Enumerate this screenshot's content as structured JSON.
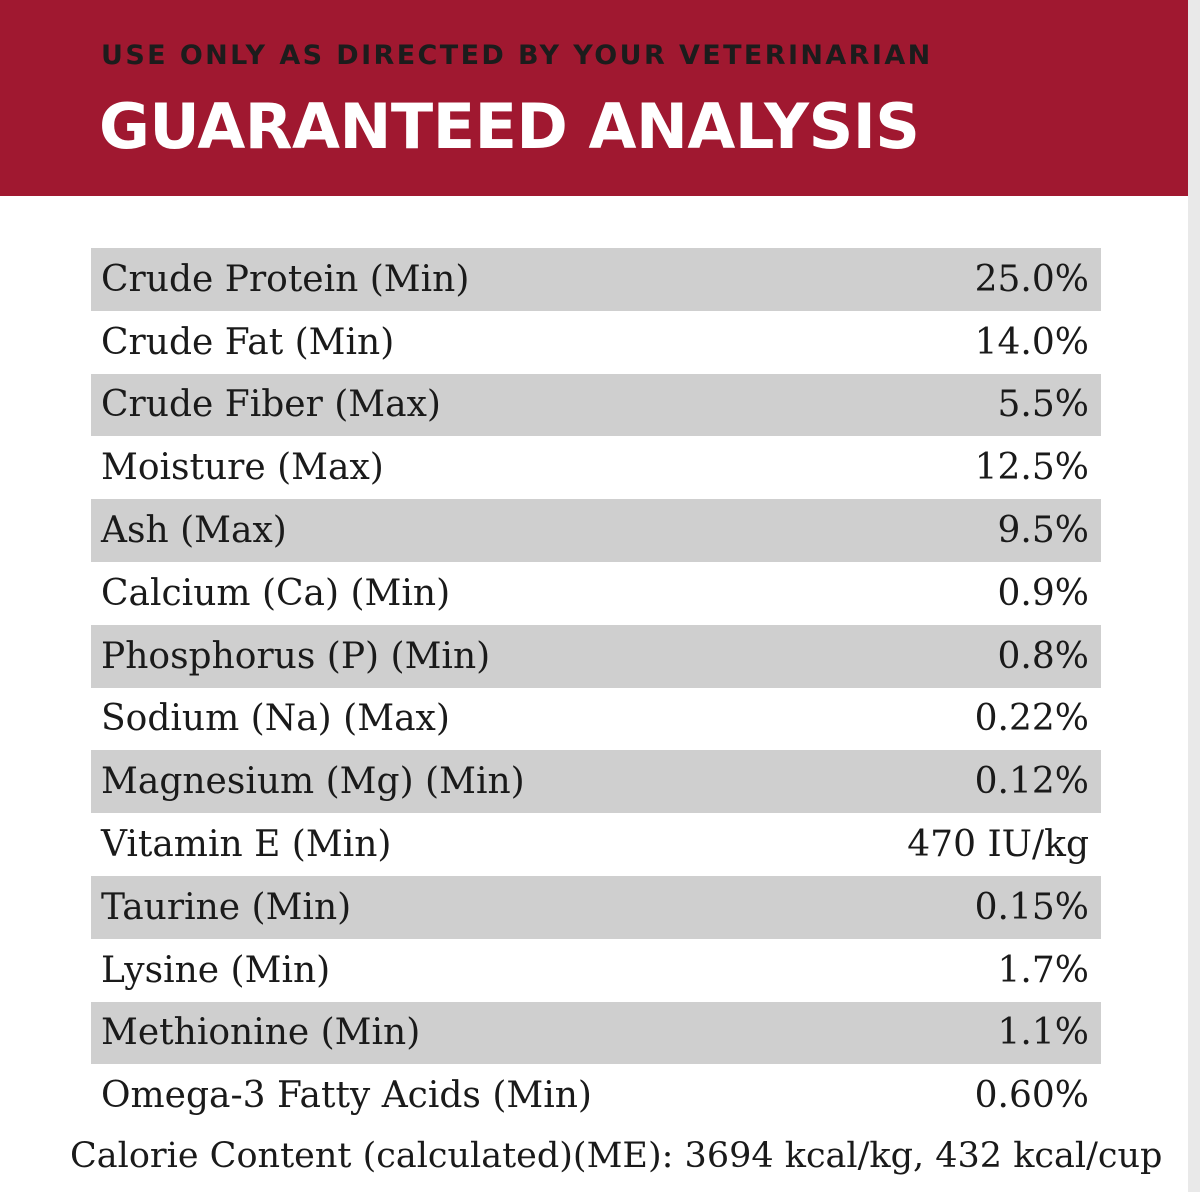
{
  "header": {
    "subtitle": "USE ONLY AS DIRECTED BY YOUR VETERINARIAN",
    "title": "GUARANTEED ANALYSIS"
  },
  "colors": {
    "header_background": "#a01830",
    "row_shade": "#cfcfcf"
  },
  "analysis": [
    {
      "label": "Crude Protein (Min)",
      "value": "25.0%"
    },
    {
      "label": "Crude Fat (Min)",
      "value": "14.0%"
    },
    {
      "label": "Crude Fiber (Max)",
      "value": "5.5%"
    },
    {
      "label": "Moisture (Max)",
      "value": "12.5%"
    },
    {
      "label": "Ash (Max)",
      "value": "9.5%"
    },
    {
      "label": "Calcium (Ca) (Min)",
      "value": "0.9%"
    },
    {
      "label": "Phosphorus (P) (Min)",
      "value": "0.8%"
    },
    {
      "label": "Sodium (Na) (Max)",
      "value": "0.22%"
    },
    {
      "label": "Magnesium (Mg) (Min)",
      "value": "0.12%"
    },
    {
      "label": "Vitamin E (Min)",
      "value": "470 IU/kg"
    },
    {
      "label": "Taurine (Min)",
      "value": "0.15%"
    },
    {
      "label": "Lysine (Min)",
      "value": "1.7%"
    },
    {
      "label": "Methionine (Min)",
      "value": "1.1%"
    },
    {
      "label": "Omega-3 Fatty Acids (Min)",
      "value": "0.60%"
    }
  ],
  "calorie_content": "Calorie Content (calculated)(ME): 3694 kcal/kg, 432 kcal/cup"
}
